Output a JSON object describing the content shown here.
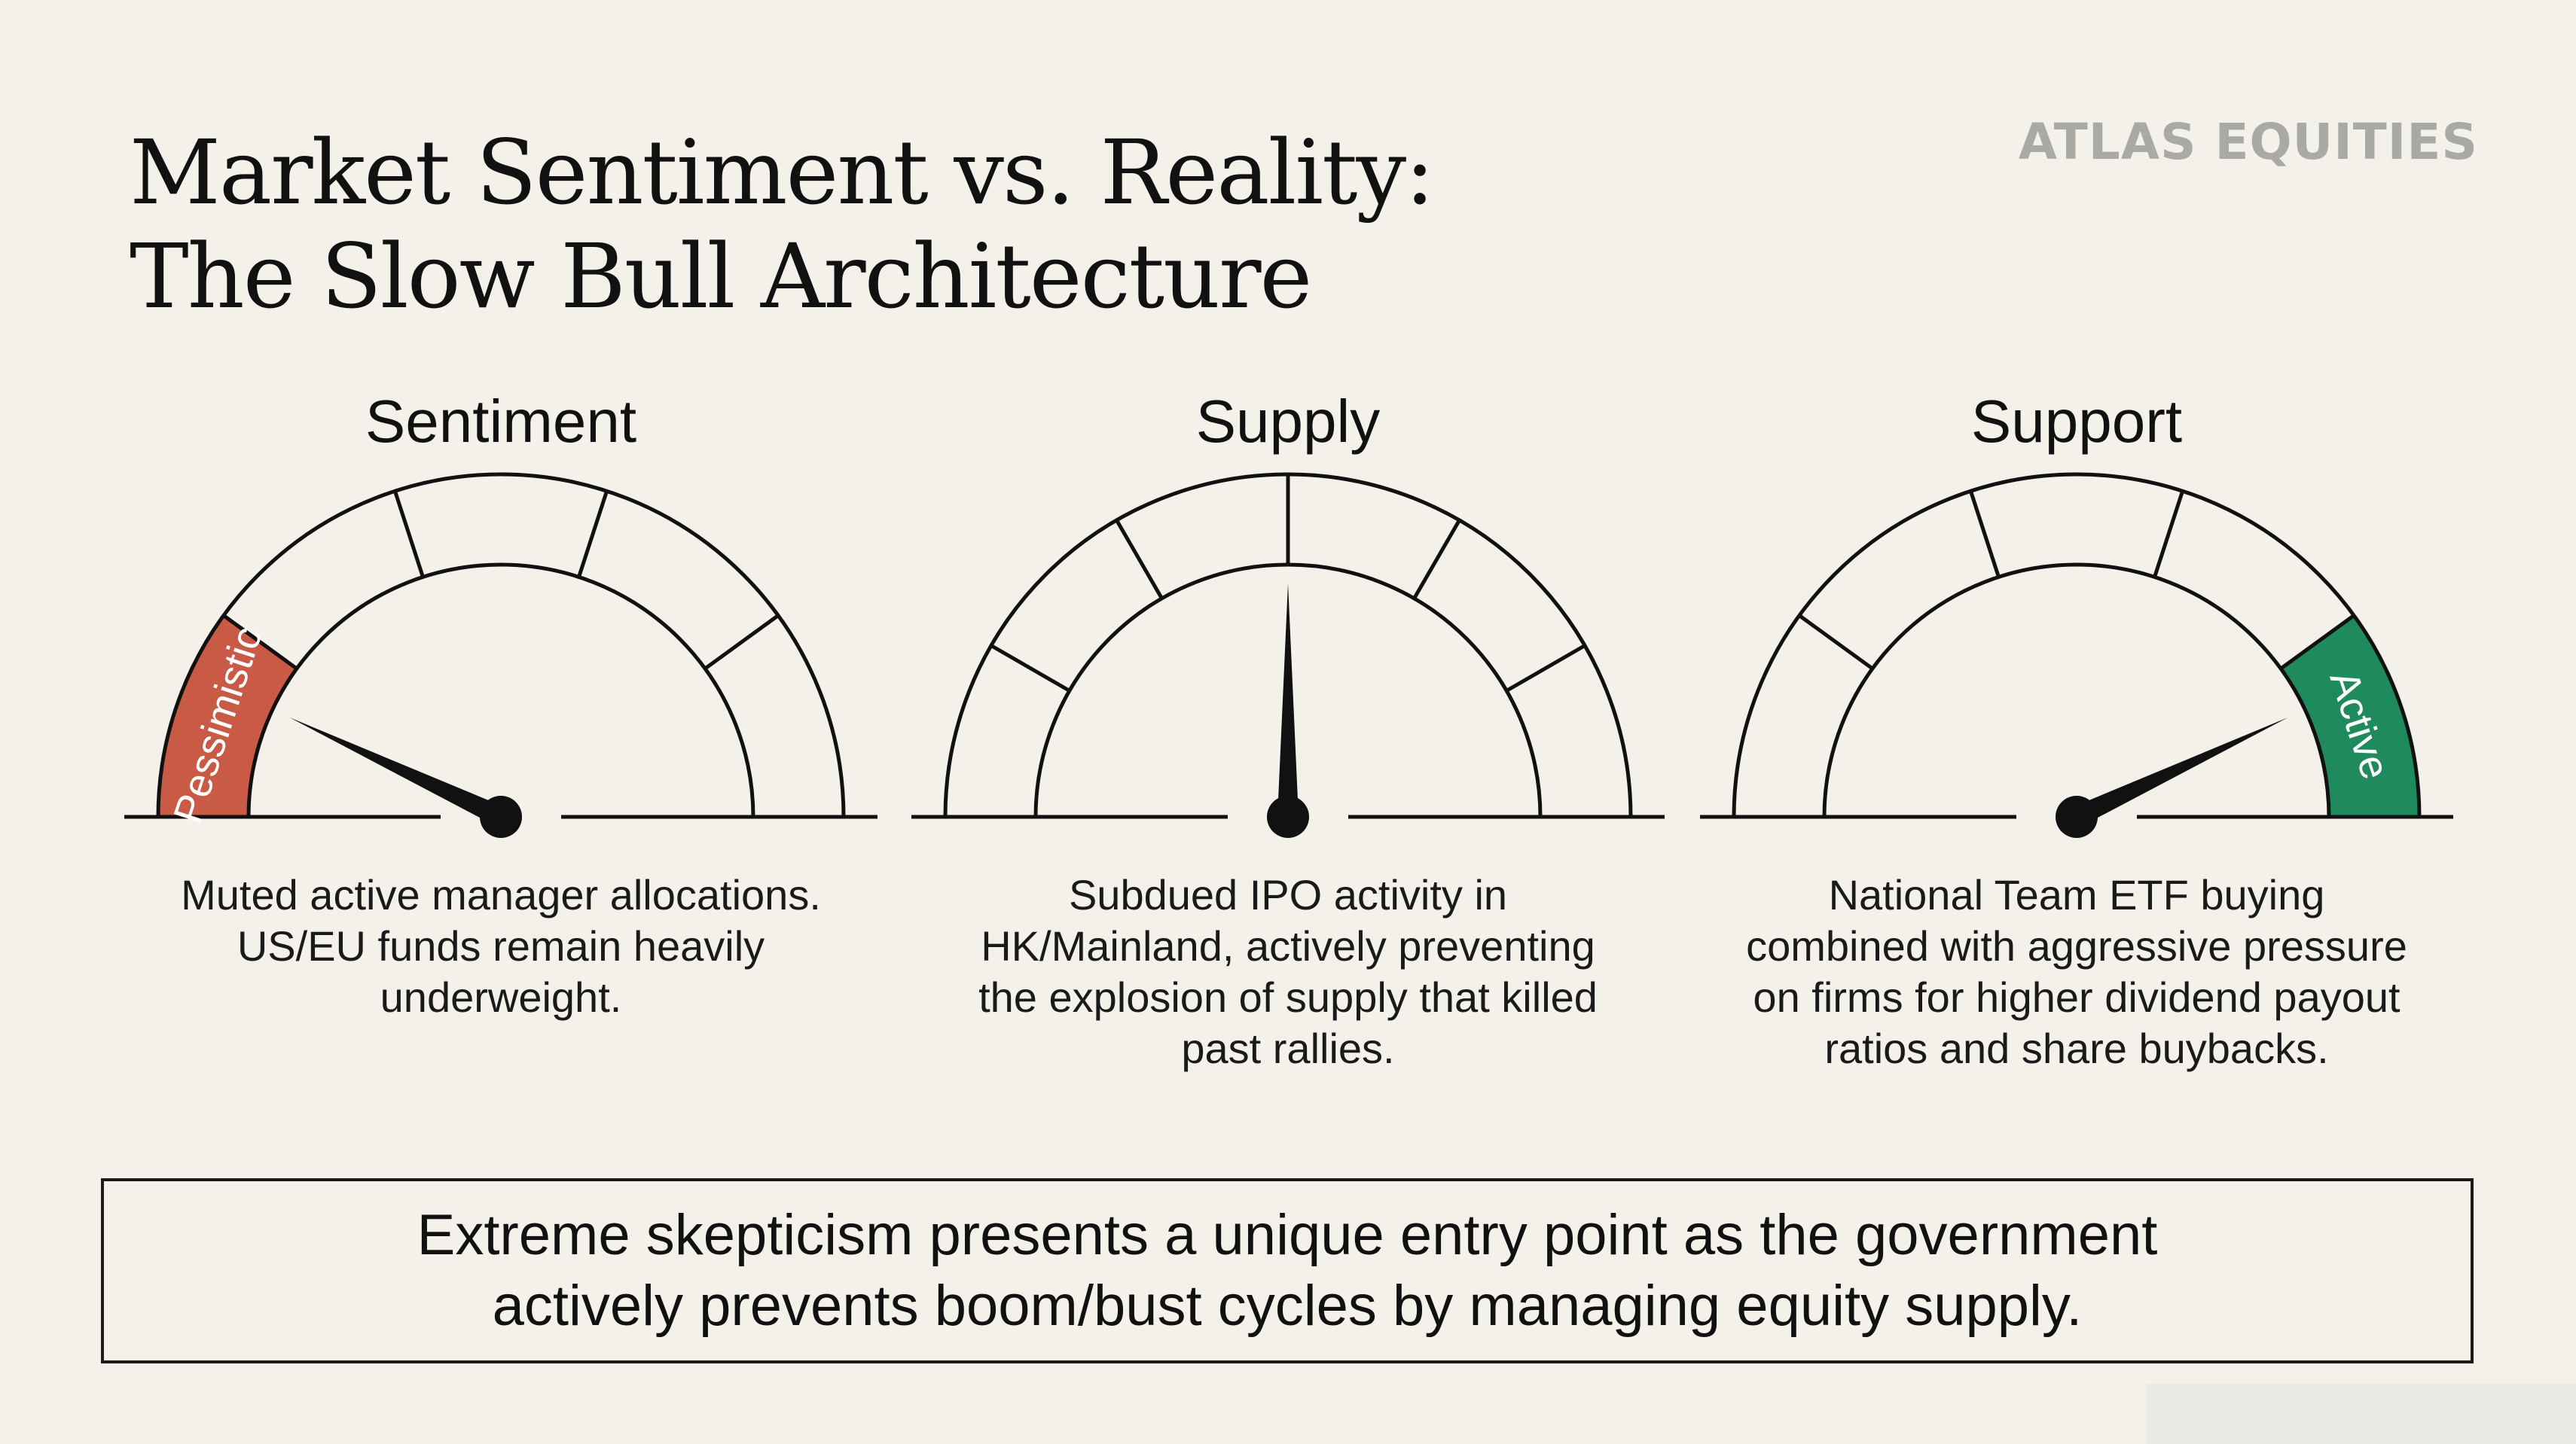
{
  "slide": {
    "title_line1": "Market Sentiment vs. Reality:",
    "title_line2": "The Slow Bull Architecture",
    "brand": "ATLAS EQUITIES",
    "callout_line1": "Extreme skepticism presents a unique entry point as the government",
    "callout_line2": "actively prevents boom/bust cycles by managing equity supply."
  },
  "colors": {
    "background": "#f3f1ea",
    "pessimistic_segment": "#c85a46",
    "active_segment": "#1f8a5b",
    "ink": "#111111",
    "brand_gray": "#a9a9a5"
  },
  "gauges": [
    {
      "label": "Sentiment",
      "description": "Muted active manager allocations.\nUS/EU funds remain heavily\nunderweight.",
      "segment_count": 5,
      "highlight_segment": 0,
      "highlight_label": "Pessimistic",
      "highlight_color": "#c85a46",
      "needle_level": 0.14
    },
    {
      "label": "Supply",
      "description": "Subdued IPO activity in\nHK/Mainland, actively preventing\nthe explosion of supply that killed\npast rallies.",
      "segment_count": 6,
      "highlight_segment": -1,
      "highlight_label": "",
      "highlight_color": "",
      "needle_level": 0.5
    },
    {
      "label": "Support",
      "description": "National Team ETF buying\ncombined with aggressive pressure\non firms for higher dividend payout\nratios and share buybacks.",
      "segment_count": 5,
      "highlight_segment": 4,
      "highlight_label": "Active",
      "highlight_color": "#1f8a5b",
      "needle_level": 0.86
    }
  ]
}
